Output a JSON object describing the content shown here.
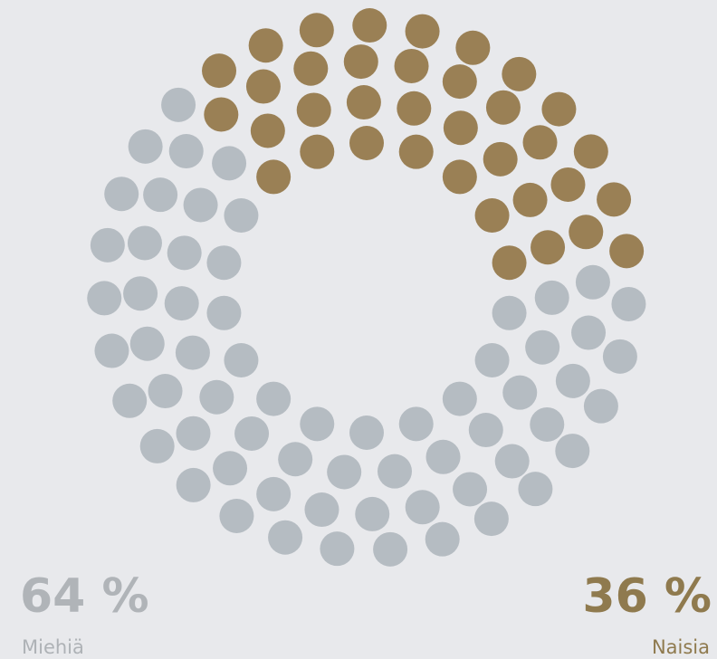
{
  "chart_data": {
    "type": "dot-ring",
    "categories": [
      "Miehiä",
      "Naisia"
    ],
    "values": [
      64,
      36
    ],
    "value_labels": [
      "64 %",
      "36 %"
    ],
    "colors": [
      "#b5bcc2",
      "#9a8055"
    ]
  }
}
